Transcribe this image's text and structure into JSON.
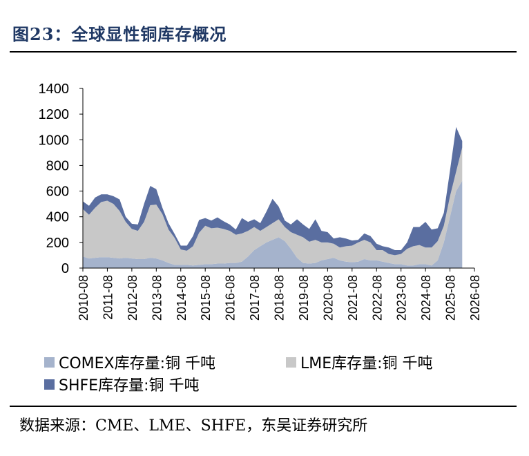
{
  "header": {
    "title": "图23：全球显性铜库存概况"
  },
  "source": {
    "text": "数据来源：CME、LME、SHFE，东吴证券研究所"
  },
  "chart_data": {
    "type": "area",
    "stacked": true,
    "ylim": [
      0,
      1400
    ],
    "yticks": [
      0,
      200,
      400,
      600,
      800,
      1000,
      1200,
      1400
    ],
    "xticks": [
      "2010-08",
      "2011-08",
      "2012-08",
      "2013-08",
      "2014-08",
      "2015-08",
      "2016-08",
      "2017-08",
      "2018-08",
      "2019-08",
      "2020-08",
      "2021-08",
      "2022-08",
      "2023-08",
      "2024-08",
      "2025-08",
      "2026-08"
    ],
    "x": [
      "2010-08",
      "2010-11",
      "2011-02",
      "2011-05",
      "2011-08",
      "2011-11",
      "2012-02",
      "2012-05",
      "2012-08",
      "2012-11",
      "2013-02",
      "2013-05",
      "2013-08",
      "2013-11",
      "2014-02",
      "2014-05",
      "2014-08",
      "2014-11",
      "2015-02",
      "2015-05",
      "2015-08",
      "2015-11",
      "2016-02",
      "2016-05",
      "2016-08",
      "2016-11",
      "2017-02",
      "2017-05",
      "2017-08",
      "2017-11",
      "2018-02",
      "2018-05",
      "2018-08",
      "2018-11",
      "2019-02",
      "2019-05",
      "2019-08",
      "2019-11",
      "2020-02",
      "2020-05",
      "2020-08",
      "2020-11",
      "2021-02",
      "2021-05",
      "2021-08",
      "2021-11",
      "2022-02",
      "2022-05",
      "2022-08",
      "2022-11",
      "2023-02",
      "2023-05",
      "2023-08",
      "2023-11",
      "2024-02",
      "2024-05",
      "2024-08",
      "2024-11",
      "2025-02",
      "2025-05",
      "2025-08",
      "2025-11",
      "2026-02"
    ],
    "legend_position": "bottom",
    "series": [
      {
        "name": "COMEX库存量:铜 千吨",
        "color": "#a5b3cc",
        "values": [
          90,
          75,
          80,
          85,
          85,
          80,
          75,
          80,
          75,
          70,
          70,
          80,
          75,
          60,
          40,
          25,
          25,
          25,
          20,
          25,
          30,
          30,
          35,
          35,
          40,
          40,
          50,
          90,
          140,
          170,
          200,
          220,
          240,
          210,
          150,
          80,
          40,
          35,
          40,
          60,
          70,
          80,
          60,
          50,
          45,
          50,
          70,
          60,
          60,
          50,
          40,
          30,
          30,
          20,
          20,
          30,
          30,
          20,
          60,
          200,
          400,
          600,
          680
        ]
      },
      {
        "name": "LME库存量:铜 千吨",
        "color": "#c8c8c8",
        "values": [
          370,
          340,
          390,
          430,
          440,
          420,
          370,
          280,
          230,
          220,
          290,
          410,
          420,
          360,
          260,
          210,
          120,
          110,
          150,
          250,
          300,
          280,
          280,
          270,
          250,
          220,
          220,
          200,
          180,
          120,
          120,
          130,
          140,
          110,
          130,
          180,
          200,
          170,
          180,
          140,
          130,
          110,
          100,
          120,
          130,
          150,
          150,
          140,
          80,
          90,
          70,
          70,
          80,
          130,
          150,
          150,
          130,
          140,
          150,
          130,
          160,
          150,
          260
        ]
      },
      {
        "name": "SHFE库存量:铜 千吨",
        "color": "#5a6ea0",
        "values": [
          60,
          70,
          80,
          60,
          50,
          60,
          90,
          40,
          40,
          50,
          140,
          150,
          120,
          50,
          50,
          30,
          30,
          40,
          80,
          100,
          60,
          60,
          80,
          60,
          50,
          40,
          120,
          70,
          60,
          60,
          120,
          190,
          100,
          50,
          60,
          120,
          100,
          100,
          160,
          90,
          80,
          40,
          80,
          60,
          40,
          20,
          50,
          50,
          50,
          30,
          50,
          40,
          30,
          50,
          150,
          140,
          200,
          140,
          100,
          100,
          200,
          350,
          50
        ]
      }
    ]
  }
}
